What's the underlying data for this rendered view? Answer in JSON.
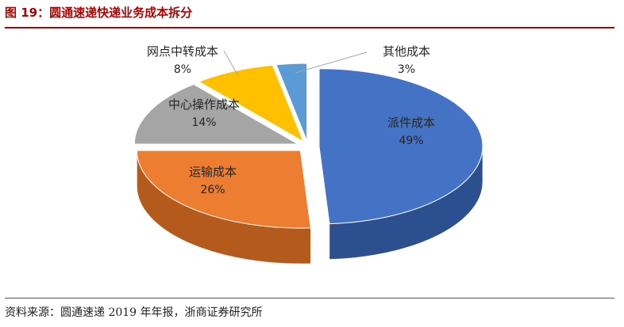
{
  "figure": {
    "title": "图 19：圆通速递快递业务成本拆分",
    "source": "资料来源：圆通速递 2019 年年报，浙商证券研究所"
  },
  "chart_data": {
    "type": "pie",
    "style": "3d-exploded",
    "title": "",
    "legend": "none",
    "slices": [
      {
        "label": "派件成本",
        "value": 49,
        "value_label": "49%",
        "color": "#4472c4",
        "side_color": "#2b4f8f"
      },
      {
        "label": "运输成本",
        "value": 26,
        "value_label": "26%",
        "color": "#ed7d31",
        "side_color": "#b45a1c"
      },
      {
        "label": "中心操作成本",
        "value": 14,
        "value_label": "14%",
        "color": "#a5a5a5",
        "side_color": "#767676"
      },
      {
        "label": "网点中转成本",
        "value": 8,
        "value_label": "8%",
        "color": "#ffc000",
        "side_color": "#c08f00"
      },
      {
        "label": "其他成本",
        "value": 3,
        "value_label": "3%",
        "color": "#5b9bd5",
        "side_color": "#3a72a5"
      }
    ]
  }
}
